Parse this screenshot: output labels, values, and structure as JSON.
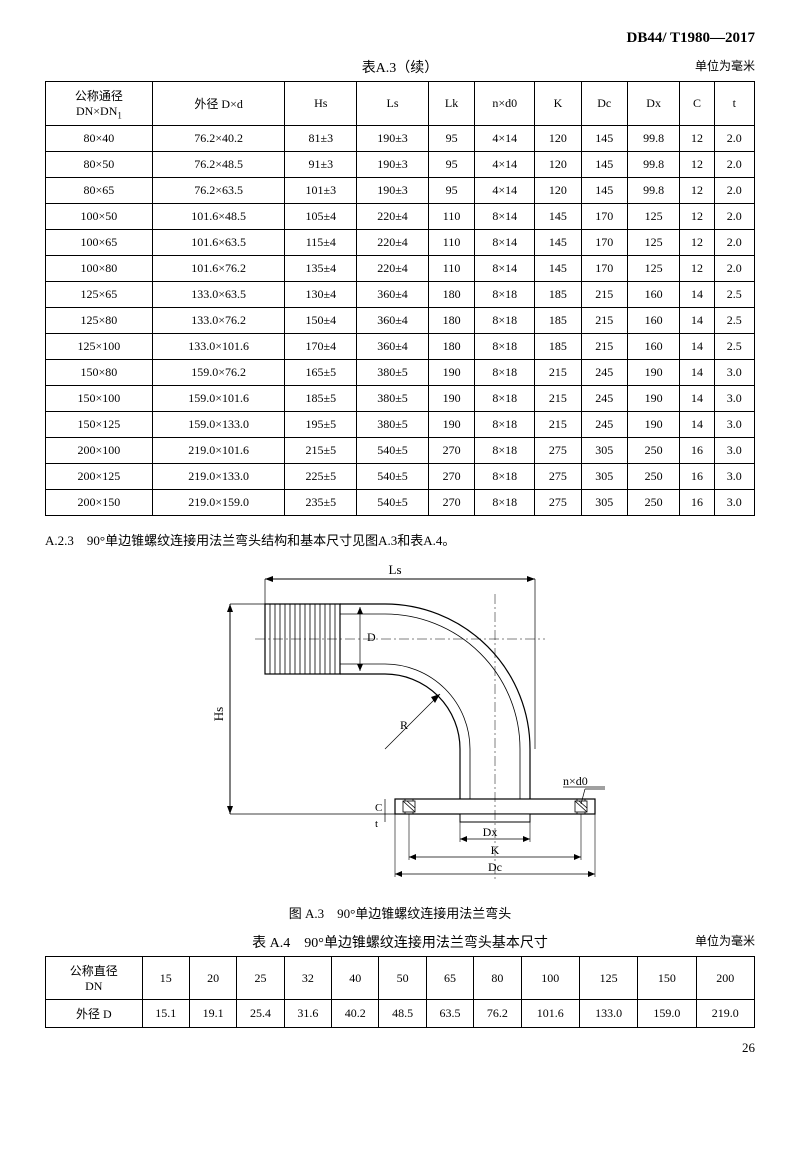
{
  "doc_header": "DB44/ T1980—2017",
  "table_a3": {
    "title": "表A.3（续）",
    "unit": "单位为毫米",
    "columns": [
      "公称通径\nDN×DN₁",
      "外径 D×d",
      "Hs",
      "Ls",
      "Lk",
      "n×d0",
      "K",
      "Dc",
      "Dx",
      "C",
      "t"
    ],
    "rows": [
      [
        "80×40",
        "76.2×40.2",
        "81±3",
        "190±3",
        "95",
        "4×14",
        "120",
        "145",
        "99.8",
        "12",
        "2.0"
      ],
      [
        "80×50",
        "76.2×48.5",
        "91±3",
        "190±3",
        "95",
        "4×14",
        "120",
        "145",
        "99.8",
        "12",
        "2.0"
      ],
      [
        "80×65",
        "76.2×63.5",
        "101±3",
        "190±3",
        "95",
        "4×14",
        "120",
        "145",
        "99.8",
        "12",
        "2.0"
      ],
      [
        "100×50",
        "101.6×48.5",
        "105±4",
        "220±4",
        "110",
        "8×14",
        "145",
        "170",
        "125",
        "12",
        "2.0"
      ],
      [
        "100×65",
        "101.6×63.5",
        "115±4",
        "220±4",
        "110",
        "8×14",
        "145",
        "170",
        "125",
        "12",
        "2.0"
      ],
      [
        "100×80",
        "101.6×76.2",
        "135±4",
        "220±4",
        "110",
        "8×14",
        "145",
        "170",
        "125",
        "12",
        "2.0"
      ],
      [
        "125×65",
        "133.0×63.5",
        "130±4",
        "360±4",
        "180",
        "8×18",
        "185",
        "215",
        "160",
        "14",
        "2.5"
      ],
      [
        "125×80",
        "133.0×76.2",
        "150±4",
        "360±4",
        "180",
        "8×18",
        "185",
        "215",
        "160",
        "14",
        "2.5"
      ],
      [
        "125×100",
        "133.0×101.6",
        "170±4",
        "360±4",
        "180",
        "8×18",
        "185",
        "215",
        "160",
        "14",
        "2.5"
      ],
      [
        "150×80",
        "159.0×76.2",
        "165±5",
        "380±5",
        "190",
        "8×18",
        "215",
        "245",
        "190",
        "14",
        "3.0"
      ],
      [
        "150×100",
        "159.0×101.6",
        "185±5",
        "380±5",
        "190",
        "8×18",
        "215",
        "245",
        "190",
        "14",
        "3.0"
      ],
      [
        "150×125",
        "159.0×133.0",
        "195±5",
        "380±5",
        "190",
        "8×18",
        "215",
        "245",
        "190",
        "14",
        "3.0"
      ],
      [
        "200×100",
        "219.0×101.6",
        "215±5",
        "540±5",
        "270",
        "8×18",
        "275",
        "305",
        "250",
        "16",
        "3.0"
      ],
      [
        "200×125",
        "219.0×133.0",
        "225±5",
        "540±5",
        "270",
        "8×18",
        "275",
        "305",
        "250",
        "16",
        "3.0"
      ],
      [
        "200×150",
        "219.0×159.0",
        "235±5",
        "540±5",
        "270",
        "8×18",
        "275",
        "305",
        "250",
        "16",
        "3.0"
      ]
    ]
  },
  "section_a23": "A.2.3　90°单边锥螺纹连接用法兰弯头结构和基本尺寸见图A.3和表A.4。",
  "figure_a3": {
    "caption": "图 A.3　90°单边锥螺纹连接用法兰弯头",
    "labels": {
      "Ls": "Ls",
      "Hs": "Hs",
      "D": "D",
      "R": "R",
      "nxd0": "n×d0",
      "Dx": "Dx",
      "K": "K",
      "Dc": "Dc",
      "C": "C",
      "t": "t"
    }
  },
  "table_a4": {
    "title": "表 A.4　90°单边锥螺纹连接用法兰弯头基本尺寸",
    "unit": "单位为毫米",
    "header_row": [
      "公称直径\nDN",
      "15",
      "20",
      "25",
      "32",
      "40",
      "50",
      "65",
      "80",
      "100",
      "125",
      "150",
      "200"
    ],
    "data_row": [
      "外径 D",
      "15.1",
      "19.1",
      "25.4",
      "31.6",
      "40.2",
      "48.5",
      "63.5",
      "76.2",
      "101.6",
      "133.0",
      "159.0",
      "219.0"
    ]
  },
  "page_number": "26"
}
